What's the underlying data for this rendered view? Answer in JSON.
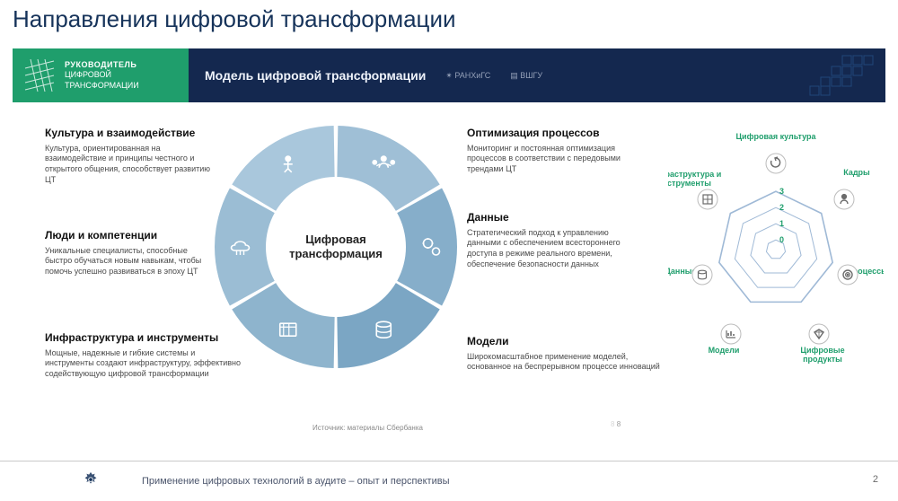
{
  "title": "Направления цифровой трансформации",
  "banner": {
    "line1": "РУКОВОДИТЕЛЬ",
    "line2": "ЦИФРОВОЙ",
    "line3": "ТРАНСФОРМАЦИИ",
    "model": "Модель цифровой трансформации",
    "logo1": "РАНХиГС",
    "logo2": "ВШГУ",
    "colors": {
      "left_bg": "#1f9e6c",
      "right_bg": "#14284f",
      "deco": "#2c7cc6"
    }
  },
  "ring": {
    "center": "Цифровая трансформация",
    "outer_r": 135,
    "inner_r": 78,
    "gap_deg": 2,
    "segments": [
      {
        "label": "culture",
        "angle_start": -90,
        "fill": "#9fbfd6"
      },
      {
        "label": "processes",
        "angle_start": -30,
        "fill": "#86aeca"
      },
      {
        "label": "data",
        "angle_start": 30,
        "fill": "#7ba6c4"
      },
      {
        "label": "models",
        "angle_start": 90,
        "fill": "#8eb4cd"
      },
      {
        "label": "infra",
        "angle_start": 150,
        "fill": "#9bbdd4"
      },
      {
        "label": "people",
        "angle_start": 210,
        "fill": "#a9c7dc"
      }
    ],
    "icon_color": "#ffffff"
  },
  "left_blocks": [
    {
      "title": "Культура\nи взаимодействие",
      "body": "Культура, ориентированная на взаимодействие и принципы честного и открытого общения, способствует развитию ЦТ"
    },
    {
      "title": "Люди\nи компетенции",
      "body": "Уникальные специалисты, способные быстро обучаться новым навыкам, чтобы помочь успешно развиваться в эпоху ЦТ"
    },
    {
      "title": "Инфраструктура\nи инструменты",
      "body": "Мощные, надежные и гибкие системы и инструменты создают инфраструктуру, эффективно содействующую цифровой трансформации"
    }
  ],
  "right_blocks": [
    {
      "title": "Оптимизация процессов",
      "body": "Мониторинг и постоянная оптимизация процессов в соответствии с передовыми трендами ЦТ"
    },
    {
      "title": "Данные",
      "body": "Стратегический подход к управлению данными с обеспечением всестороннего доступа в режиме реального времени, обеспечение безопасности данных"
    },
    {
      "title": "Модели",
      "body": "Широкомасштабное применение моделей, основанное на беспрерывном процессе инноваций"
    }
  ],
  "radar": {
    "axes": [
      "Цифровая культура",
      "Кадры",
      "Процессы",
      "Цифровые продукты",
      "Модели",
      "Данные",
      "Инфраструктура и инструменты"
    ],
    "rings": [
      0,
      1,
      2,
      3
    ],
    "ring_color": "#9fb9d6",
    "label_color": "#1f9e6c",
    "icons": [
      "loop-icon",
      "person-icon",
      "target-icon",
      "diamond-icon",
      "chart-icon",
      "db-icon",
      "grid-icon"
    ]
  },
  "source": "Источник: материалы Сбербанка",
  "note8": "8",
  "footer": {
    "text": "Применение цифровых технологий в аудите – опыт и перспективы",
    "page": "2",
    "emblem_color": "#16335a"
  }
}
